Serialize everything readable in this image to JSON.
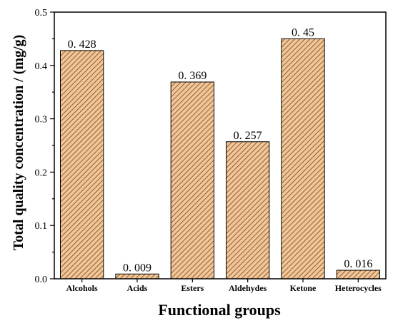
{
  "chart_data": {
    "type": "bar",
    "categories": [
      "Alcohols",
      "Acids",
      "Esters",
      "Aldehydes",
      "Ketone",
      "Heterocycles"
    ],
    "values": [
      0.428,
      0.009,
      0.369,
      0.257,
      0.45,
      0.016
    ],
    "value_labels": [
      "0. 428",
      "0. 009",
      "0. 369",
      "0. 257",
      "0. 45",
      "0. 016"
    ],
    "yticks": [
      "0.0",
      "0.1",
      "0.2",
      "0.3",
      "0.4",
      "0.5"
    ],
    "title": "",
    "xlabel": "Functional groups",
    "ylabel": "Total quality concentration / (mg/g)",
    "ylim": [
      0,
      0.5
    ],
    "grid": false,
    "bar_fill": "#f3c596",
    "hatch_color": "#6b4a25",
    "hatch_pattern": "diagonal"
  }
}
